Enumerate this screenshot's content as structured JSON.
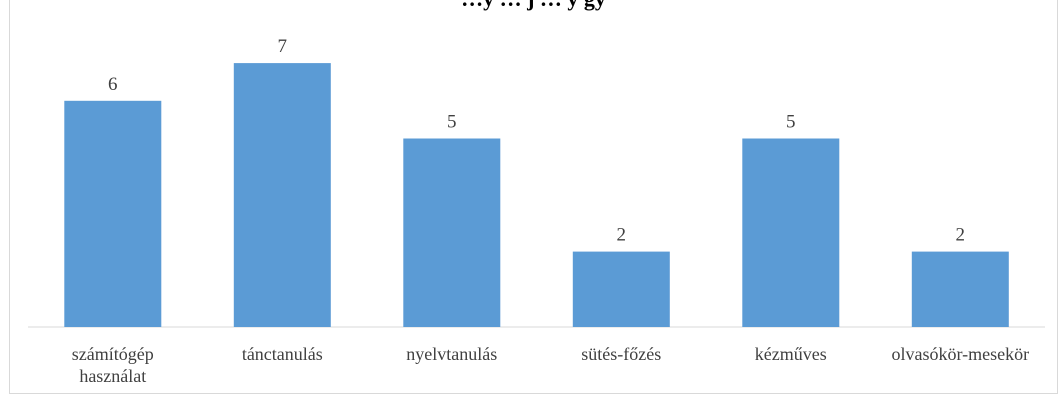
{
  "chart_data": {
    "type": "bar",
    "title": "…y … j … y gy",
    "categories": [
      [
        "számítógép",
        "használat"
      ],
      [
        "tánctanulás"
      ],
      [
        "nyelvtanulás"
      ],
      [
        "sütés-főzés"
      ],
      [
        "kézműves"
      ],
      [
        "olvasókör-mesekör"
      ]
    ],
    "values": [
      6,
      7,
      5,
      2,
      5,
      2
    ],
    "ylim": [
      0,
      7
    ],
    "grid": false,
    "legend": "none",
    "bar_color": "#5b9bd5",
    "axis_color": "#d9d9d9",
    "label_color": "#404040"
  }
}
